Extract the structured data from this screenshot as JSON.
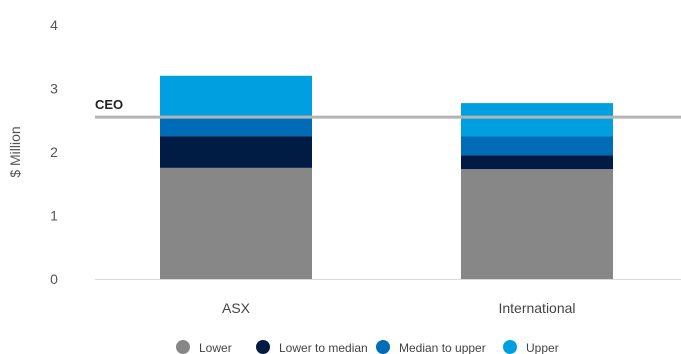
{
  "chart_data": {
    "type": "bar",
    "stacked": true,
    "categories": [
      "ASX",
      "International"
    ],
    "series": [
      {
        "name": "Lower",
        "values": [
          1.75,
          1.73
        ],
        "color": "#878787"
      },
      {
        "name": "Lower to median",
        "values": [
          0.5,
          0.22
        ],
        "color": "#001b44"
      },
      {
        "name": "Median to upper",
        "values": [
          0.3,
          0.3
        ],
        "color": "#006bb6"
      },
      {
        "name": "Upper",
        "values": [
          0.65,
          0.52
        ],
        "color": "#009fe0"
      }
    ],
    "ylabel": "$ Million",
    "ylim": [
      0,
      4
    ],
    "yticks": [
      "0",
      "1",
      "2",
      "3",
      "4"
    ],
    "reference_line": {
      "label": "CEO",
      "value": 2.55,
      "color": "#b4b4b4"
    },
    "legend_position": "bottom",
    "grid": false
  }
}
